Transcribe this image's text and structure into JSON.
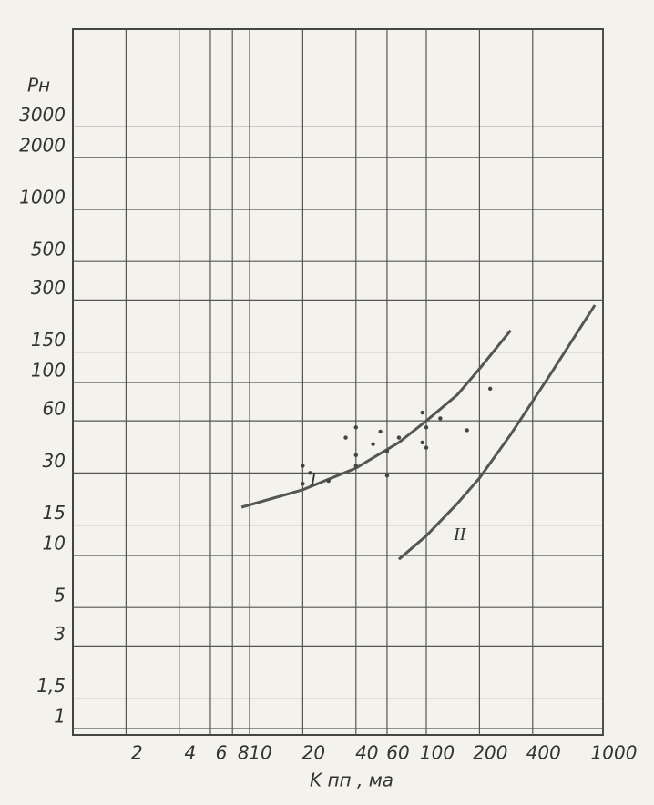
{
  "chart_data": {
    "type": "line",
    "y_label": "Pн",
    "x_label": "K пп , ма",
    "xscale": "log",
    "yscale": "log",
    "grid": true,
    "xlim": [
      1,
      1000
    ],
    "ylim": [
      1,
      10000
    ],
    "xticks": [
      2,
      4,
      6,
      8,
      10,
      20,
      40,
      60,
      100,
      200,
      400,
      1000
    ],
    "yticks": [
      1,
      {
        "value": 1.5,
        "label": "1,5"
      },
      3,
      5,
      10,
      15,
      30,
      60,
      100,
      150,
      300,
      500,
      1000,
      2000,
      3000
    ],
    "series": [
      {
        "name": "I",
        "color": "#555555",
        "x": [
          9,
          20,
          40,
          70,
          100,
          150,
          200,
          300
        ],
        "values": [
          19,
          24,
          32,
          45,
          60,
          85,
          120,
          200
        ]
      },
      {
        "name": "II",
        "color": "#555555",
        "x": [
          70,
          100,
          150,
          200,
          300,
          500,
          900
        ],
        "values": [
          9.5,
          13,
          20,
          28,
          50,
          110,
          280
        ]
      }
    ],
    "points": {
      "color": "#444444",
      "x": [
        20,
        20,
        22,
        28,
        35,
        40,
        40,
        40,
        50,
        55,
        60,
        60,
        70,
        95,
        95,
        100,
        100,
        120,
        170,
        230
      ],
      "values": [
        26,
        33,
        30,
        27,
        48,
        38,
        55,
        33,
        44,
        52,
        29,
        40,
        48,
        67,
        45,
        55,
        42,
        62,
        53,
        92
      ]
    }
  }
}
